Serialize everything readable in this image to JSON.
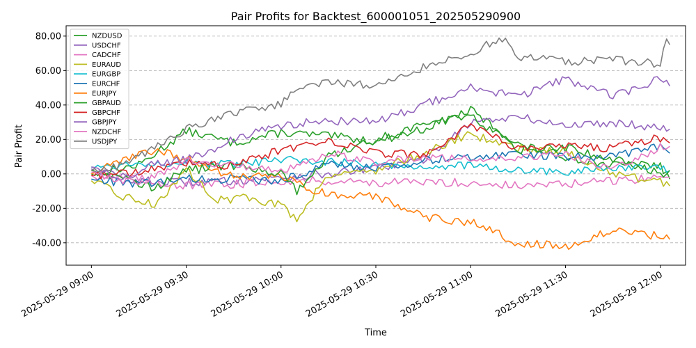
{
  "chart_data": {
    "type": "line",
    "title": "Pair Profits for Backtest_600001051_202505290900",
    "xlabel": "Time",
    "ylabel": "Pair Profit",
    "x_range": [
      "2025-05-29 08:52",
      "2025-05-29 12:08"
    ],
    "ylim": [
      -53,
      86
    ],
    "y_ticks": [
      -40,
      -20,
      0,
      20,
      40,
      60,
      80
    ],
    "y_tick_labels": [
      "-40.00",
      "-20.00",
      "0.00",
      "20.00",
      "40.00",
      "60.00",
      "80.00"
    ],
    "x_ticks": [
      "2025-05-29 09:00",
      "2025-05-29 09:30",
      "2025-05-29 10:00",
      "2025-05-29 10:30",
      "2025-05-29 11:00",
      "2025-05-29 11:30",
      "2025-05-29 12:00"
    ],
    "x_tick_labels": [
      "2025-05-29 09:00",
      "2025-05-29 09:30",
      "2025-05-29 10:00",
      "2025-05-29 10:30",
      "2025-05-29 11:00",
      "2025-05-29 11:30",
      "2025-05-29 12:00"
    ],
    "grid": "horizontal dashed",
    "legend_position": "top-left",
    "series": [
      {
        "name": "NZDUSD",
        "color": "#2ca02c",
        "x": [
          "09:00",
          "09:15",
          "09:30",
          "09:45",
          "10:00",
          "10:15",
          "10:30",
          "10:45",
          "11:00",
          "11:15",
          "11:30",
          "11:45",
          "12:00",
          "12:03"
        ],
        "y": [
          0,
          5,
          25,
          18,
          24,
          22,
          19,
          26,
          37,
          17,
          10,
          5,
          5,
          -3
        ]
      },
      {
        "name": "USDCHF",
        "color": "#9467bd",
        "x": [
          "09:00",
          "09:15",
          "09:30",
          "09:45",
          "10:00",
          "10:15",
          "10:30",
          "10:45",
          "11:00",
          "11:15",
          "11:30",
          "11:45",
          "12:00",
          "12:03"
        ],
        "y": [
          3,
          -4,
          -5,
          -4,
          -2,
          0,
          3,
          8,
          30,
          33,
          28,
          30,
          27,
          26
        ]
      },
      {
        "name": "CADCHF",
        "color": "#e377c2",
        "x": [
          "09:00",
          "09:15",
          "09:30",
          "09:45",
          "10:00",
          "10:15",
          "10:30",
          "10:45",
          "11:00",
          "11:15",
          "11:30",
          "11:45",
          "12:00",
          "12:03"
        ],
        "y": [
          -1,
          -3,
          -7,
          -6,
          -4,
          -4,
          -5,
          -5,
          -5,
          -7,
          -6,
          -4,
          -2,
          -2
        ]
      },
      {
        "name": "EURAUD",
        "color": "#bcbd22",
        "x": [
          "09:00",
          "09:10",
          "09:20",
          "09:30",
          "09:40",
          "09:50",
          "10:00",
          "10:05",
          "10:15",
          "10:30",
          "10:45",
          "11:00",
          "11:15",
          "11:30",
          "11:45",
          "12:00",
          "12:03"
        ],
        "y": [
          -4,
          -13,
          -18,
          2,
          -15,
          -14,
          -18,
          -26,
          0,
          2,
          12,
          23,
          15,
          13,
          0,
          -5,
          -7
        ]
      },
      {
        "name": "EURGBP",
        "color": "#17becf",
        "x": [
          "09:00",
          "09:15",
          "09:30",
          "09:45",
          "10:00",
          "10:15",
          "10:30",
          "10:45",
          "11:00",
          "11:15",
          "11:30",
          "11:45",
          "12:00",
          "12:03"
        ],
        "y": [
          4,
          6,
          7,
          5,
          8,
          7,
          6,
          4,
          5,
          2,
          1,
          3,
          3,
          2
        ]
      },
      {
        "name": "EURCHF",
        "color": "#1f77b4",
        "x": [
          "09:00",
          "09:15",
          "09:30",
          "09:45",
          "10:00",
          "10:15",
          "10:30",
          "10:45",
          "11:00",
          "11:15",
          "11:30",
          "11:45",
          "12:00",
          "12:03"
        ],
        "y": [
          -3,
          -6,
          -3,
          -3,
          -4,
          6,
          3,
          8,
          10,
          12,
          10,
          10,
          16,
          12
        ]
      },
      {
        "name": "EURJPY",
        "color": "#ff7f0e",
        "x": [
          "09:00",
          "09:10",
          "09:20",
          "09:30",
          "09:45",
          "10:00",
          "10:10",
          "10:20",
          "10:30",
          "10:45",
          "11:00",
          "11:15",
          "11:30",
          "11:45",
          "12:00",
          "12:03"
        ],
        "y": [
          0,
          8,
          14,
          9,
          -2,
          -1,
          -10,
          -13,
          -13,
          -25,
          -28,
          -40,
          -42,
          -33,
          -36,
          -38
        ]
      },
      {
        "name": "GBPAUD",
        "color": "#2ca02c",
        "x": [
          "09:00",
          "09:10",
          "09:20",
          "09:30",
          "09:45",
          "10:00",
          "10:05",
          "10:15",
          "10:30",
          "10:45",
          "11:00",
          "11:15",
          "11:30",
          "11:45",
          "12:00",
          "12:03"
        ],
        "y": [
          2,
          -2,
          -8,
          2,
          5,
          0,
          -10,
          10,
          20,
          29,
          34,
          14,
          15,
          9,
          0,
          2
        ]
      },
      {
        "name": "GBPCHF",
        "color": "#d62728",
        "x": [
          "09:00",
          "09:15",
          "09:30",
          "09:45",
          "10:00",
          "10:15",
          "10:30",
          "10:45",
          "11:00",
          "11:15",
          "11:30",
          "11:45",
          "12:00",
          "12:03"
        ],
        "y": [
          -1,
          1,
          6,
          5,
          14,
          20,
          12,
          11,
          28,
          14,
          16,
          15,
          21,
          18
        ]
      },
      {
        "name": "GBPJPY",
        "color": "#9467bd",
        "x": [
          "09:00",
          "09:10",
          "09:20",
          "09:30",
          "09:45",
          "10:00",
          "10:15",
          "10:30",
          "10:45",
          "11:00",
          "11:15",
          "11:30",
          "11:45",
          "12:00",
          "12:03"
        ],
        "y": [
          4,
          -3,
          6,
          8,
          20,
          28,
          31,
          30,
          40,
          50,
          45,
          55,
          45,
          55,
          51
        ]
      },
      {
        "name": "NZDCHF",
        "color": "#e377c2",
        "x": [
          "09:00",
          "09:15",
          "09:30",
          "09:45",
          "10:00",
          "10:15",
          "10:30",
          "10:45",
          "11:00",
          "11:15",
          "11:30",
          "11:45",
          "12:00",
          "12:03"
        ],
        "y": [
          1,
          -6,
          7,
          5,
          2,
          12,
          7,
          9,
          9,
          10,
          11,
          2,
          16,
          16
        ]
      },
      {
        "name": "USDJPY",
        "color": "#7f7f7f",
        "x": [
          "09:00",
          "09:10",
          "09:20",
          "09:30",
          "09:45",
          "10:00",
          "10:05",
          "10:15",
          "10:30",
          "10:45",
          "11:00",
          "11:10",
          "11:15",
          "11:30",
          "11:45",
          "12:00",
          "12:02",
          "12:03"
        ],
        "y": [
          2,
          5,
          15,
          26,
          35,
          40,
          51,
          53,
          51,
          62,
          70,
          79,
          68,
          65,
          66,
          64,
          78,
          75
        ]
      }
    ]
  }
}
